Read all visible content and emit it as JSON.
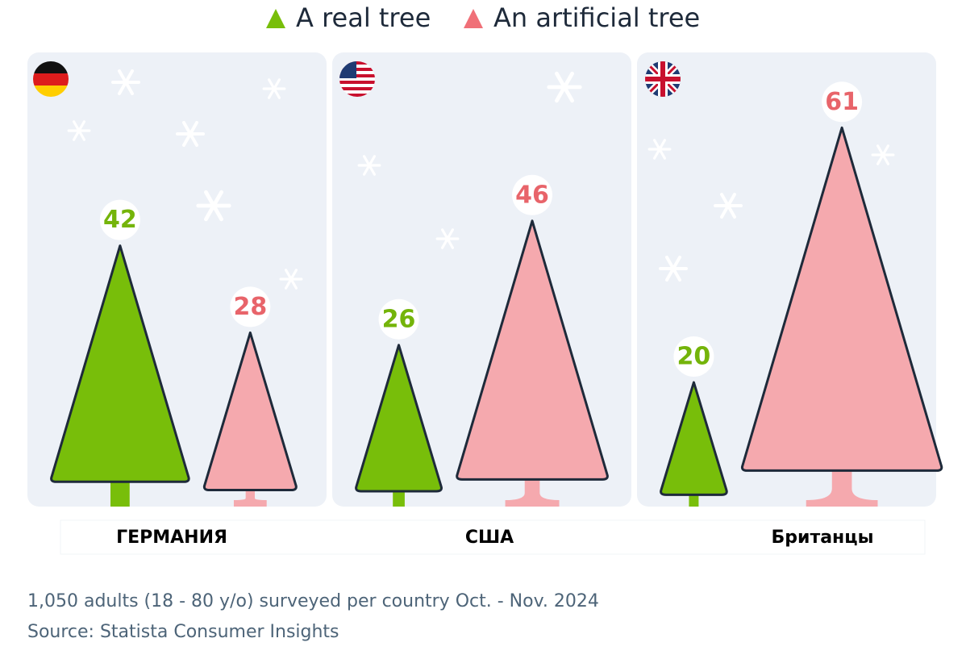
{
  "chart_data": {
    "type": "tree-bar",
    "categories": [
      "ГЕРМАНИЯ",
      "США",
      "Британцы"
    ],
    "series": [
      {
        "name": "A real tree",
        "color": "#78be0a",
        "label_color": "#74b40a",
        "values": [
          42,
          26,
          20
        ]
      },
      {
        "name": "An artificial tree",
        "color": "#f5a9ae",
        "label_color": "#e8646a",
        "values": [
          28,
          46,
          61
        ]
      }
    ],
    "notes": [
      "1,050 adults (18 - 80 y/o) surveyed per country Oct. - Nov. 2024",
      "Source: Statista Consumer Insights"
    ]
  }
}
